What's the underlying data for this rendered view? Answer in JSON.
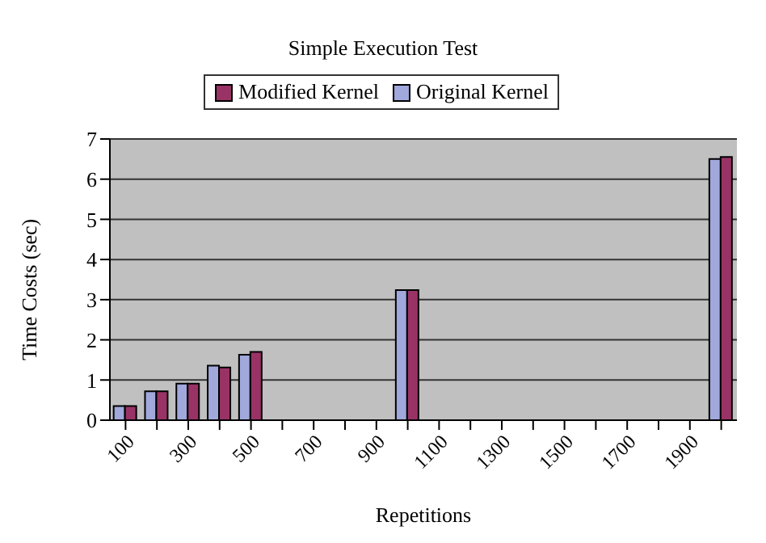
{
  "chart_data": {
    "type": "bar",
    "title": "Simple Execution Test",
    "xlabel": "Repetitions",
    "ylabel": "Time Costs (sec)",
    "categories": [
      "100",
      null,
      "300",
      null,
      "500",
      null,
      "700",
      null,
      "900",
      null,
      "1100",
      null,
      "1300",
      null,
      "1500",
      null,
      "1700",
      null,
      "1900",
      null
    ],
    "series": [
      {
        "name": "Original Kernel",
        "color": "#a0a8dc",
        "values": [
          0.35,
          0.72,
          0.91,
          1.36,
          1.63,
          null,
          null,
          null,
          null,
          3.24,
          null,
          null,
          null,
          null,
          null,
          null,
          null,
          null,
          null,
          6.5
        ]
      },
      {
        "name": "Modified Kernel",
        "color": "#993366",
        "values": [
          0.35,
          0.72,
          0.91,
          1.31,
          1.7,
          null,
          null,
          null,
          null,
          3.24,
          null,
          null,
          null,
          null,
          null,
          null,
          null,
          null,
          null,
          6.55
        ]
      }
    ],
    "ylim": [
      0,
      7
    ],
    "yticks": [
      0,
      1,
      2,
      3,
      4,
      5,
      6,
      7
    ],
    "grid": "y",
    "legend": "top"
  }
}
